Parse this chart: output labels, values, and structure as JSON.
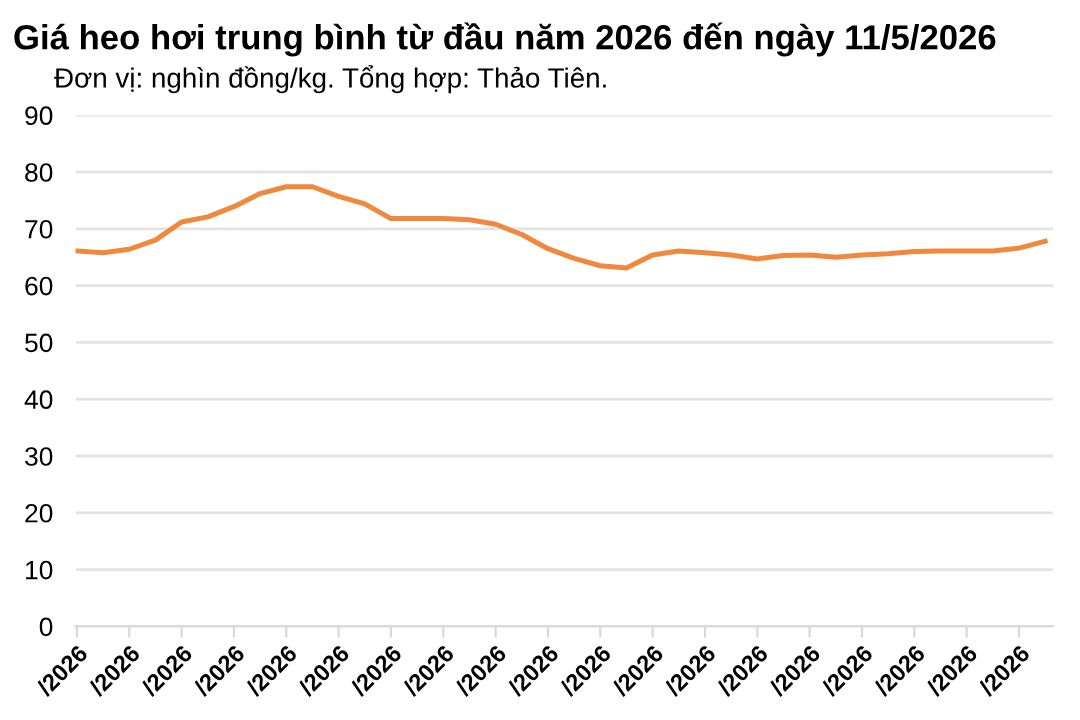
{
  "chart_data": {
    "type": "line",
    "title": "Giá heo hơi trung bình từ đầu năm 2026 đến ngày 11/5/2026",
    "subtitle": "Đơn vị: nghìn đồng/kg. Tổng hợp: Thảo Tiên.",
    "categories": [
      "/2026",
      null,
      "/2026",
      null,
      "/2026",
      null,
      "/2026",
      null,
      "/2026",
      null,
      "/2026",
      null,
      "/2026",
      null,
      "/2026",
      null,
      "/2026",
      null,
      "/2026",
      null,
      "/2026",
      null,
      "/2026",
      null,
      "/2026",
      null,
      "/2026",
      null,
      "/2026",
      null,
      "/2026",
      null,
      "/2026",
      null,
      "/2026",
      null,
      "/2026",
      null
    ],
    "series": [
      {
        "color": "#f0883e",
        "values": [
          66.1,
          65.8,
          66.4,
          68.0,
          71.2,
          72.1,
          73.9,
          76.2,
          77.4,
          77.4,
          75.7,
          74.4,
          71.8,
          71.8,
          71.8,
          71.6,
          70.8,
          69.0,
          66.5,
          64.8,
          63.5,
          63.1,
          65.4,
          66.1,
          65.8,
          65.4,
          64.7,
          65.3,
          65.4,
          65.0,
          65.4,
          65.6,
          66.0,
          66.1,
          66.1,
          66.1,
          66.6,
          67.8
        ]
      }
    ],
    "ylim": [
      0,
      90
    ],
    "yticks": [
      0,
      10,
      20,
      30,
      40,
      50,
      60,
      70,
      80,
      90
    ],
    "grid": "y",
    "marker": "none",
    "line_style": "solid",
    "legend": false
  }
}
